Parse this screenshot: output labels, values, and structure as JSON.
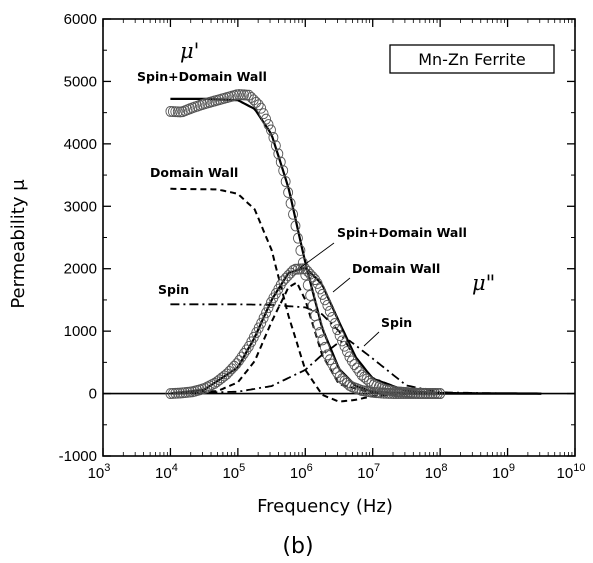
{
  "chart_data": {
    "type": "line",
    "title": "",
    "panel_label": "(b)",
    "legend_box": "Mn-Zn Ferrite",
    "xlabel": "Frequency (Hz)",
    "ylabel": "Permeability μ",
    "xscale": "log",
    "xlim": [
      1000,
      10000000000
    ],
    "ylim": [
      -1000,
      6000
    ],
    "x_ticks": [
      {
        "base": "10",
        "exp": "3"
      },
      {
        "base": "10",
        "exp": "4"
      },
      {
        "base": "10",
        "exp": "5"
      },
      {
        "base": "10",
        "exp": "6"
      },
      {
        "base": "10",
        "exp": "7"
      },
      {
        "base": "10",
        "exp": "8"
      },
      {
        "base": "10",
        "exp": "9"
      },
      {
        "base": "10",
        "exp": "10"
      }
    ],
    "y_ticks": [
      "-1000",
      "0",
      "1000",
      "2000",
      "3000",
      "4000",
      "5000",
      "6000"
    ],
    "grid": false,
    "series": [
      {
        "label_ref": "spin_dw_real",
        "style": "solid",
        "points": [
          [
            10000,
            4720
          ],
          [
            31623,
            4720
          ],
          [
            100000,
            4700
          ],
          [
            177828,
            4560
          ],
          [
            316228,
            4150
          ],
          [
            562341,
            3300
          ],
          [
            1000000,
            2100
          ],
          [
            1778279,
            1050
          ],
          [
            3162278,
            400
          ],
          [
            5623413,
            120
          ],
          [
            10000000,
            30
          ],
          [
            31622777,
            0
          ],
          [
            3162277660,
            0
          ]
        ]
      },
      {
        "label_ref": "dw_real",
        "style": "dashed",
        "points": [
          [
            10000,
            3280
          ],
          [
            50000,
            3270
          ],
          [
            100000,
            3200
          ],
          [
            177828,
            2950
          ],
          [
            316228,
            2300
          ],
          [
            562341,
            1250
          ],
          [
            1000000,
            380
          ],
          [
            1778279,
            -20
          ],
          [
            3162278,
            -130
          ],
          [
            5623413,
            -100
          ],
          [
            10000000,
            -40
          ],
          [
            31622777,
            -5
          ],
          [
            100000000,
            0
          ]
        ]
      },
      {
        "label_ref": "spin_real",
        "style": "dashdot",
        "points": [
          [
            10000,
            1430
          ],
          [
            100000,
            1430
          ],
          [
            316228,
            1420
          ],
          [
            1000000,
            1380
          ],
          [
            1778279,
            1270
          ],
          [
            3162278,
            1000
          ],
          [
            5623413,
            560
          ],
          [
            10000000,
            250
          ],
          [
            31622777,
            40
          ],
          [
            100000000,
            0
          ]
        ]
      },
      {
        "label_ref": "spin_dw_imag",
        "style": "solid",
        "points": [
          [
            10000,
            0
          ],
          [
            31623,
            60
          ],
          [
            100000,
            420
          ],
          [
            177828,
            900
          ],
          [
            316228,
            1500
          ],
          [
            562341,
            1930
          ],
          [
            1000000,
            2020
          ],
          [
            1778279,
            1750
          ],
          [
            3162278,
            1150
          ],
          [
            5623413,
            580
          ],
          [
            10000000,
            240
          ],
          [
            31622777,
            40
          ],
          [
            100000000,
            8
          ],
          [
            3162277660,
            0
          ]
        ]
      },
      {
        "label_ref": "dw_imag",
        "style": "dashed",
        "points": [
          [
            10000,
            0
          ],
          [
            50000,
            40
          ],
          [
            100000,
            180
          ],
          [
            177828,
            520
          ],
          [
            316228,
            1150
          ],
          [
            562341,
            1700
          ],
          [
            750000,
            1780
          ],
          [
            1000000,
            1500
          ],
          [
            1778279,
            620
          ],
          [
            3162278,
            150
          ],
          [
            10000000,
            10
          ],
          [
            100000000,
            0
          ]
        ]
      },
      {
        "label_ref": "spin_imag",
        "style": "dashdot",
        "points": [
          [
            10000,
            0
          ],
          [
            100000,
            30
          ],
          [
            316228,
            120
          ],
          [
            1000000,
            380
          ],
          [
            1778279,
            620
          ],
          [
            3162278,
            820
          ],
          [
            4500000,
            850
          ],
          [
            10000000,
            560
          ],
          [
            31622777,
            130
          ],
          [
            100000000,
            20
          ],
          [
            1000000000,
            0
          ]
        ]
      },
      {
        "label_ref": "measured_real",
        "style": "circles",
        "points": [
          [
            10000,
            4520
          ],
          [
            14678,
            4510
          ],
          [
            21544,
            4580
          ],
          [
            31623,
            4640
          ],
          [
            46416,
            4690
          ],
          [
            68129,
            4740
          ],
          [
            100000,
            4790
          ],
          [
            146780,
            4780
          ],
          [
            215443,
            4600
          ],
          [
            316228,
            4200
          ],
          [
            464159,
            3600
          ],
          [
            681292,
            2800
          ],
          [
            1000000,
            1900
          ],
          [
            1467799,
            1150
          ],
          [
            2154435,
            600
          ],
          [
            3162278,
            280
          ],
          [
            4641589,
            120
          ],
          [
            6812921,
            50
          ],
          [
            10000000,
            20
          ],
          [
            14677993,
            5
          ],
          [
            21544347,
            0
          ],
          [
            46415888,
            0
          ],
          [
            100000000,
            0
          ]
        ]
      },
      {
        "label_ref": "measured_imag",
        "style": "circles",
        "points": [
          [
            10000,
            0
          ],
          [
            14678,
            10
          ],
          [
            21544,
            30
          ],
          [
            31623,
            80
          ],
          [
            46416,
            170
          ],
          [
            68129,
            310
          ],
          [
            100000,
            500
          ],
          [
            146780,
            760
          ],
          [
            215443,
            1100
          ],
          [
            316228,
            1480
          ],
          [
            464159,
            1800
          ],
          [
            681292,
            1990
          ],
          [
            1000000,
            2000
          ],
          [
            1467799,
            1800
          ],
          [
            2154435,
            1400
          ],
          [
            3162278,
            950
          ],
          [
            4641589,
            560
          ],
          [
            6812921,
            300
          ],
          [
            10000000,
            150
          ],
          [
            14677993,
            70
          ],
          [
            21544347,
            30
          ],
          [
            46415888,
            5
          ],
          [
            100000000,
            0
          ]
        ]
      }
    ],
    "baseline": 0,
    "annotations": {
      "mu_prime": "μ'",
      "mu_double_prime": "μ\"",
      "spin_dw_left": "Spin+Domain Wall",
      "dw_left": "Domain Wall",
      "spin_left": "Spin",
      "spin_dw_right": "Spin+Domain Wall",
      "dw_right": "Domain Wall",
      "spin_right": "Spin"
    }
  }
}
